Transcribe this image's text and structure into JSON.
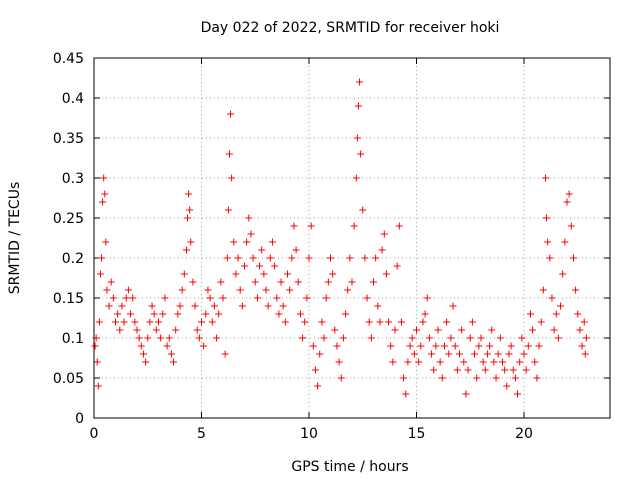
{
  "chart_data": {
    "type": "scatter",
    "title": "Day 022 of 2022, SRMTID for receiver hoki",
    "xlabel": "GPS time / hours",
    "ylabel": "SRMTID / TECUs",
    "xlim": [
      0,
      24
    ],
    "ylim": [
      0,
      0.45
    ],
    "xticks": [
      0,
      5,
      10,
      15,
      20
    ],
    "yticks": [
      0,
      0.05,
      0.1,
      0.15,
      0.2,
      0.25,
      0.3,
      0.35,
      0.4,
      0.45
    ],
    "grid": true,
    "marker": "+",
    "color": "#ff0000",
    "series": [
      {
        "name": "SRMTID",
        "points": [
          [
            0.05,
            0.09
          ],
          [
            0.1,
            0.1
          ],
          [
            0.15,
            0.07
          ],
          [
            0.2,
            0.04
          ],
          [
            0.25,
            0.12
          ],
          [
            0.3,
            0.18
          ],
          [
            0.35,
            0.2
          ],
          [
            0.4,
            0.27
          ],
          [
            0.45,
            0.3
          ],
          [
            0.5,
            0.28
          ],
          [
            0.55,
            0.22
          ],
          [
            0.6,
            0.16
          ],
          [
            0.7,
            0.14
          ],
          [
            0.8,
            0.17
          ],
          [
            0.9,
            0.15
          ],
          [
            1.0,
            0.12
          ],
          [
            1.1,
            0.13
          ],
          [
            1.2,
            0.11
          ],
          [
            1.3,
            0.14
          ],
          [
            1.4,
            0.12
          ],
          [
            1.5,
            0.15
          ],
          [
            1.6,
            0.16
          ],
          [
            1.7,
            0.13
          ],
          [
            1.8,
            0.15
          ],
          [
            1.9,
            0.12
          ],
          [
            2.0,
            0.11
          ],
          [
            2.1,
            0.1
          ],
          [
            2.2,
            0.09
          ],
          [
            2.3,
            0.08
          ],
          [
            2.4,
            0.07
          ],
          [
            2.5,
            0.1
          ],
          [
            2.6,
            0.12
          ],
          [
            2.7,
            0.14
          ],
          [
            2.8,
            0.13
          ],
          [
            2.9,
            0.11
          ],
          [
            3.0,
            0.12
          ],
          [
            3.1,
            0.1
          ],
          [
            3.2,
            0.13
          ],
          [
            3.3,
            0.15
          ],
          [
            3.4,
            0.09
          ],
          [
            3.5,
            0.1
          ],
          [
            3.6,
            0.08
          ],
          [
            3.7,
            0.07
          ],
          [
            3.8,
            0.11
          ],
          [
            3.9,
            0.13
          ],
          [
            4.0,
            0.14
          ],
          [
            4.1,
            0.16
          ],
          [
            4.2,
            0.18
          ],
          [
            4.3,
            0.21
          ],
          [
            4.35,
            0.25
          ],
          [
            4.4,
            0.28
          ],
          [
            4.45,
            0.26
          ],
          [
            4.5,
            0.22
          ],
          [
            4.6,
            0.17
          ],
          [
            4.7,
            0.14
          ],
          [
            4.8,
            0.11
          ],
          [
            4.9,
            0.1
          ],
          [
            5.0,
            0.12
          ],
          [
            5.1,
            0.09
          ],
          [
            5.2,
            0.13
          ],
          [
            5.3,
            0.16
          ],
          [
            5.4,
            0.15
          ],
          [
            5.5,
            0.12
          ],
          [
            5.6,
            0.14
          ],
          [
            5.7,
            0.1
          ],
          [
            5.8,
            0.13
          ],
          [
            5.9,
            0.17
          ],
          [
            6.0,
            0.15
          ],
          [
            6.1,
            0.08
          ],
          [
            6.2,
            0.2
          ],
          [
            6.25,
            0.26
          ],
          [
            6.3,
            0.33
          ],
          [
            6.35,
            0.38
          ],
          [
            6.4,
            0.3
          ],
          [
            6.5,
            0.22
          ],
          [
            6.6,
            0.18
          ],
          [
            6.7,
            0.2
          ],
          [
            6.8,
            0.16
          ],
          [
            6.9,
            0.14
          ],
          [
            7.0,
            0.19
          ],
          [
            7.1,
            0.22
          ],
          [
            7.2,
            0.25
          ],
          [
            7.3,
            0.23
          ],
          [
            7.4,
            0.2
          ],
          [
            7.5,
            0.17
          ],
          [
            7.6,
            0.15
          ],
          [
            7.7,
            0.19
          ],
          [
            7.8,
            0.21
          ],
          [
            7.9,
            0.18
          ],
          [
            8.0,
            0.16
          ],
          [
            8.1,
            0.14
          ],
          [
            8.2,
            0.2
          ],
          [
            8.3,
            0.22
          ],
          [
            8.4,
            0.19
          ],
          [
            8.5,
            0.15
          ],
          [
            8.6,
            0.13
          ],
          [
            8.7,
            0.17
          ],
          [
            8.8,
            0.14
          ],
          [
            8.9,
            0.12
          ],
          [
            9.0,
            0.18
          ],
          [
            9.1,
            0.16
          ],
          [
            9.2,
            0.2
          ],
          [
            9.3,
            0.24
          ],
          [
            9.4,
            0.21
          ],
          [
            9.5,
            0.17
          ],
          [
            9.6,
            0.13
          ],
          [
            9.7,
            0.1
          ],
          [
            9.8,
            0.12
          ],
          [
            9.9,
            0.15
          ],
          [
            10.0,
            0.2
          ],
          [
            10.1,
            0.24
          ],
          [
            10.2,
            0.09
          ],
          [
            10.3,
            0.06
          ],
          [
            10.4,
            0.04
          ],
          [
            10.5,
            0.08
          ],
          [
            10.6,
            0.12
          ],
          [
            10.7,
            0.1
          ],
          [
            10.8,
            0.15
          ],
          [
            10.9,
            0.17
          ],
          [
            11.0,
            0.2
          ],
          [
            11.1,
            0.18
          ],
          [
            11.2,
            0.11
          ],
          [
            11.3,
            0.09
          ],
          [
            11.4,
            0.07
          ],
          [
            11.5,
            0.05
          ],
          [
            11.6,
            0.1
          ],
          [
            11.7,
            0.13
          ],
          [
            11.8,
            0.16
          ],
          [
            11.9,
            0.2
          ],
          [
            12.0,
            0.17
          ],
          [
            12.1,
            0.24
          ],
          [
            12.2,
            0.3
          ],
          [
            12.25,
            0.35
          ],
          [
            12.3,
            0.39
          ],
          [
            12.35,
            0.42
          ],
          [
            12.4,
            0.33
          ],
          [
            12.5,
            0.26
          ],
          [
            12.6,
            0.2
          ],
          [
            12.7,
            0.15
          ],
          [
            12.8,
            0.12
          ],
          [
            12.9,
            0.1
          ],
          [
            13.0,
            0.17
          ],
          [
            13.1,
            0.2
          ],
          [
            13.2,
            0.14
          ],
          [
            13.3,
            0.12
          ],
          [
            13.4,
            0.21
          ],
          [
            13.5,
            0.23
          ],
          [
            13.6,
            0.18
          ],
          [
            13.7,
            0.12
          ],
          [
            13.8,
            0.09
          ],
          [
            13.9,
            0.07
          ],
          [
            14.0,
            0.11
          ],
          [
            14.1,
            0.19
          ],
          [
            14.2,
            0.24
          ],
          [
            14.3,
            0.12
          ],
          [
            14.4,
            0.05
          ],
          [
            14.5,
            0.03
          ],
          [
            14.6,
            0.07
          ],
          [
            14.7,
            0.09
          ],
          [
            14.8,
            0.1
          ],
          [
            14.9,
            0.08
          ],
          [
            15.0,
            0.11
          ],
          [
            15.1,
            0.07
          ],
          [
            15.2,
            0.09
          ],
          [
            15.3,
            0.12
          ],
          [
            15.4,
            0.13
          ],
          [
            15.5,
            0.15
          ],
          [
            15.6,
            0.1
          ],
          [
            15.7,
            0.08
          ],
          [
            15.8,
            0.06
          ],
          [
            15.9,
            0.09
          ],
          [
            16.0,
            0.11
          ],
          [
            16.1,
            0.07
          ],
          [
            16.2,
            0.05
          ],
          [
            16.3,
            0.09
          ],
          [
            16.4,
            0.12
          ],
          [
            16.5,
            0.08
          ],
          [
            16.6,
            0.1
          ],
          [
            16.7,
            0.14
          ],
          [
            16.8,
            0.09
          ],
          [
            16.9,
            0.06
          ],
          [
            17.0,
            0.08
          ],
          [
            17.1,
            0.11
          ],
          [
            17.2,
            0.07
          ],
          [
            17.3,
            0.03
          ],
          [
            17.4,
            0.06
          ],
          [
            17.5,
            0.1
          ],
          [
            17.6,
            0.12
          ],
          [
            17.7,
            0.08
          ],
          [
            17.8,
            0.05
          ],
          [
            17.9,
            0.09
          ],
          [
            18.0,
            0.1
          ],
          [
            18.1,
            0.07
          ],
          [
            18.2,
            0.06
          ],
          [
            18.3,
            0.08
          ],
          [
            18.4,
            0.09
          ],
          [
            18.5,
            0.11
          ],
          [
            18.6,
            0.07
          ],
          [
            18.7,
            0.05
          ],
          [
            18.8,
            0.08
          ],
          [
            18.9,
            0.1
          ],
          [
            19.0,
            0.07
          ],
          [
            19.1,
            0.06
          ],
          [
            19.2,
            0.04
          ],
          [
            19.3,
            0.08
          ],
          [
            19.4,
            0.09
          ],
          [
            19.5,
            0.06
          ],
          [
            19.6,
            0.05
          ],
          [
            19.7,
            0.03
          ],
          [
            19.8,
            0.07
          ],
          [
            19.9,
            0.1
          ],
          [
            20.0,
            0.08
          ],
          [
            20.1,
            0.06
          ],
          [
            20.2,
            0.09
          ],
          [
            20.3,
            0.13
          ],
          [
            20.4,
            0.11
          ],
          [
            20.5,
            0.07
          ],
          [
            20.6,
            0.05
          ],
          [
            20.7,
            0.09
          ],
          [
            20.8,
            0.12
          ],
          [
            20.9,
            0.16
          ],
          [
            21.0,
            0.3
          ],
          [
            21.05,
            0.25
          ],
          [
            21.1,
            0.22
          ],
          [
            21.2,
            0.2
          ],
          [
            21.3,
            0.15
          ],
          [
            21.4,
            0.11
          ],
          [
            21.5,
            0.13
          ],
          [
            21.6,
            0.1
          ],
          [
            21.7,
            0.14
          ],
          [
            21.8,
            0.18
          ],
          [
            21.9,
            0.22
          ],
          [
            22.0,
            0.27
          ],
          [
            22.1,
            0.28
          ],
          [
            22.2,
            0.24
          ],
          [
            22.3,
            0.2
          ],
          [
            22.4,
            0.16
          ],
          [
            22.5,
            0.13
          ],
          [
            22.6,
            0.11
          ],
          [
            22.7,
            0.09
          ],
          [
            22.8,
            0.12
          ],
          [
            22.85,
            0.08
          ],
          [
            22.9,
            0.1
          ]
        ]
      }
    ]
  }
}
